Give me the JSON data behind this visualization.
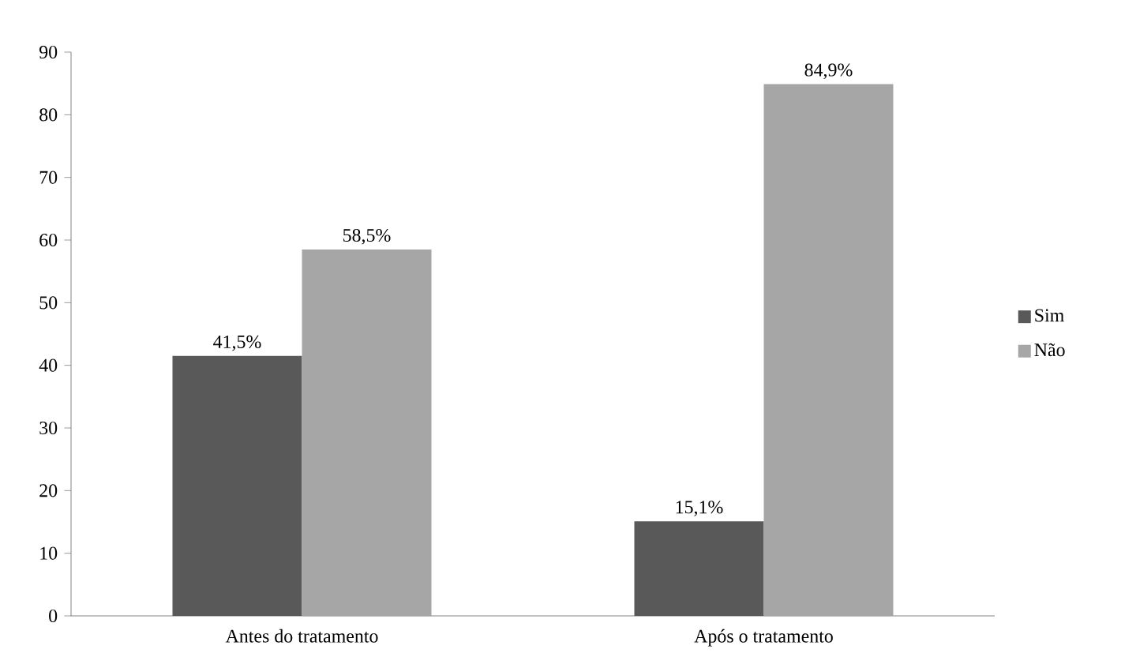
{
  "chart_data": {
    "type": "bar",
    "categories": [
      "Antes do tratamento",
      "Após o tratamento"
    ],
    "series": [
      {
        "name": "Sim",
        "color": "#595959",
        "values": [
          41.5,
          15.1
        ],
        "value_labels": [
          "41,5%",
          "15,1%"
        ]
      },
      {
        "name": "Não",
        "color": "#a6a6a6",
        "values": [
          58.5,
          84.9
        ],
        "value_labels": [
          "58,5%",
          "84,9%"
        ]
      }
    ],
    "ylim": [
      0,
      90
    ],
    "yticks": [
      0,
      10,
      20,
      30,
      40,
      50,
      60,
      70,
      80,
      90
    ],
    "grid": false,
    "legend": "right"
  }
}
